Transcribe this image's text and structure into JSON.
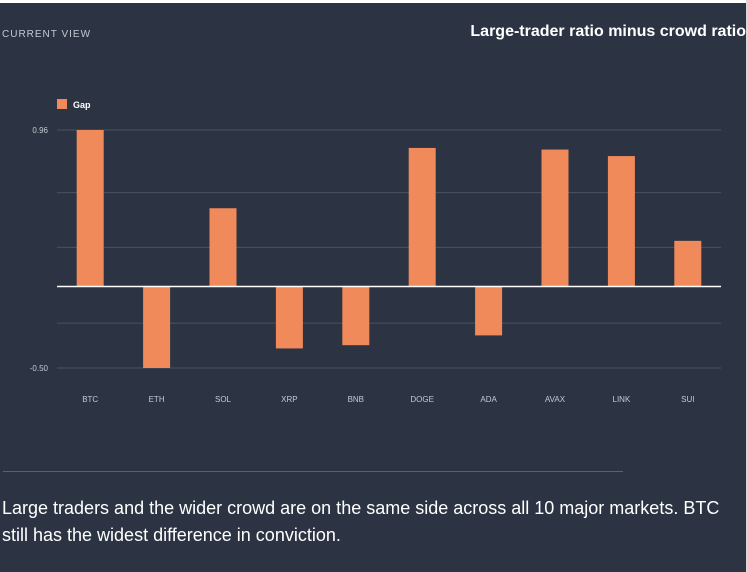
{
  "header": {
    "current_view_label": "CURRENT VIEW",
    "title": "Large-trader ratio minus crowd ratio"
  },
  "chart_data": {
    "type": "bar",
    "title": "Large-trader ratio minus crowd ratio",
    "xlabel": "",
    "ylabel": "",
    "categories": [
      "BTC",
      "ETH",
      "SOL",
      "XRP",
      "BNB",
      "DOGE",
      "ADA",
      "AVAX",
      "LINK",
      "SUI"
    ],
    "series": [
      {
        "name": "Gap",
        "values": [
          0.96,
          -0.5,
          0.48,
          -0.38,
          -0.36,
          0.85,
          -0.3,
          0.84,
          0.8,
          0.28
        ]
      }
    ],
    "ylim": [
      -0.5,
      0.96
    ],
    "y_tick_labels": [
      "0.96",
      "-0.50"
    ],
    "grid": true,
    "legend_position": "top-left",
    "colors": {
      "bar": "#f08a5a",
      "background": "#2c3443",
      "grid": "#4a5261",
      "zero_line": "#ffffff",
      "tick_text": "#c4c9d2"
    }
  },
  "summary": {
    "text": "Large traders and the wider crowd are on the same side across all 10 major markets. BTC still has the widest difference in conviction."
  }
}
